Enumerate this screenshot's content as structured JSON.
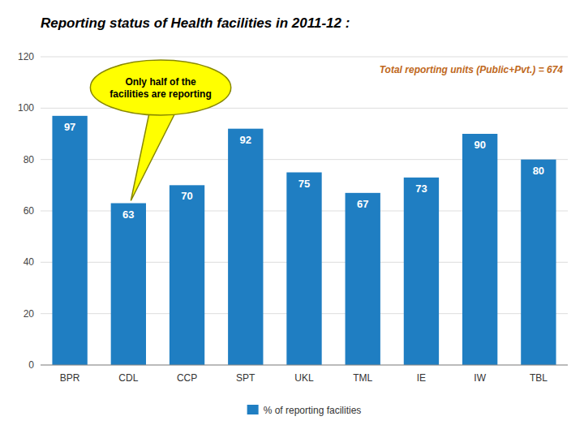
{
  "chart_data": {
    "type": "bar",
    "title": "Reporting status of Health facilities in 2011-12 :",
    "categories": [
      "BPR",
      "CDL",
      "CCP",
      "SPT",
      "UKL",
      "TML",
      "IE",
      "IW",
      "TBL"
    ],
    "series": [
      {
        "name": "% of reporting facilities",
        "color": "#1F7EC2",
        "values": [
          97,
          63,
          70,
          92,
          75,
          67,
          73,
          90,
          80
        ]
      }
    ],
    "ylim": [
      0,
      120
    ],
    "yticks": [
      0,
      20,
      40,
      60,
      80,
      100,
      120
    ],
    "grid": true,
    "legend": "bottom",
    "data_labels": true,
    "annotations": [
      {
        "text": "Total reporting units (Public+Pvt.) = 674",
        "color": "#C06820"
      },
      {
        "text": "Only half of the\nfacilities are reporting",
        "color": "#FFFF00",
        "category": "CDL"
      }
    ]
  }
}
